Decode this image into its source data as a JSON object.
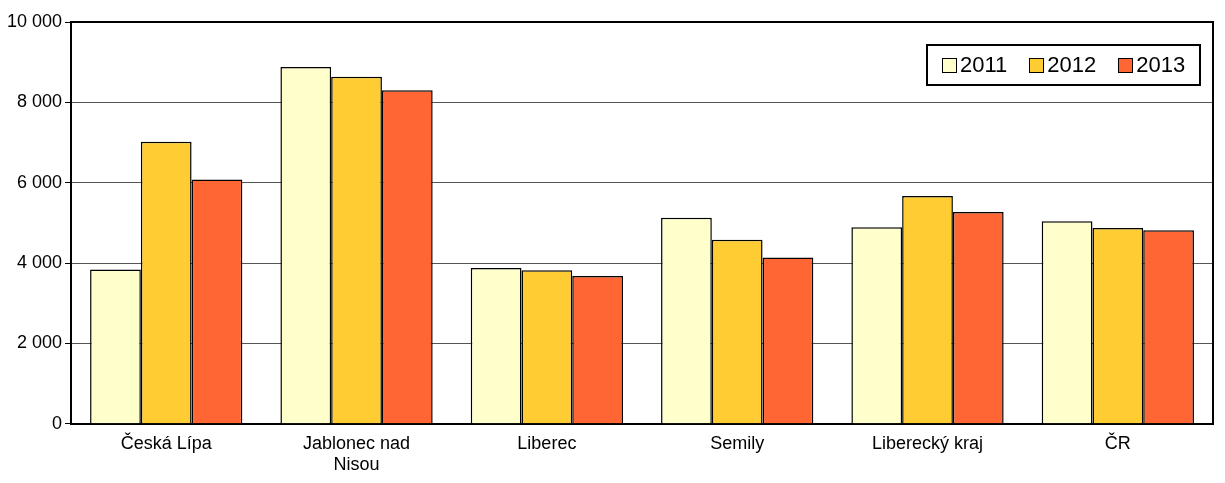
{
  "chart_data": {
    "type": "bar",
    "categories": [
      "Česká Lípa",
      "Jablonec nad Nisou",
      "Liberec",
      "Semily",
      "Liberecký kraj",
      "ČR"
    ],
    "series": [
      {
        "name": "2011",
        "color": "#ffffcc",
        "values": [
          3840,
          8880,
          3880,
          5130,
          4890,
          5040
        ]
      },
      {
        "name": "2012",
        "color": "#ffcc33",
        "values": [
          7020,
          8640,
          3820,
          4580,
          5670,
          4870
        ]
      },
      {
        "name": "2013",
        "color": "#ff6633",
        "values": [
          6080,
          8300,
          3680,
          4140,
          5270,
          4820
        ]
      }
    ],
    "ylim": [
      0,
      10000
    ],
    "yticks": [
      {
        "value": 0,
        "label": "0"
      },
      {
        "value": 2000,
        "label": "2 000"
      },
      {
        "value": 4000,
        "label": "4 000"
      },
      {
        "value": 6000,
        "label": "6 000"
      },
      {
        "value": 8000,
        "label": "8 000"
      },
      {
        "value": 10000,
        "label": "10 000"
      }
    ],
    "grid": "y",
    "legend": "top right"
  }
}
